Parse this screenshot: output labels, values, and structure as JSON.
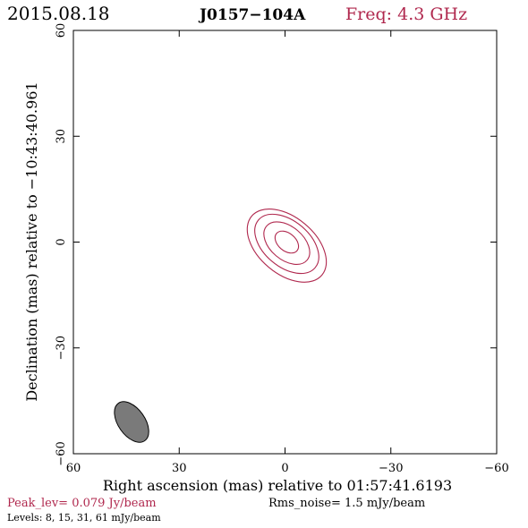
{
  "header": {
    "date": "2015.08.18",
    "source": "J0157−104A",
    "freq": "Freq: 4.3 GHz"
  },
  "footer": {
    "peak": "Peak_lev=  0.079 Jy/beam",
    "rms": "Rms_noise=  1.5 mJy/beam",
    "levels": "Levels:  8,  15,  31,  61 mJy/beam"
  },
  "colors": {
    "contour": "#b0284e",
    "beam_fill": "#7a7a7a",
    "frame": "#000000"
  },
  "chart_data": {
    "type": "contour",
    "xlabel": "Right ascension (mas) relative to 01:57:41.6193",
    "ylabel": "Declination (mas) relative to −10:43:40.961",
    "xlim": [
      60,
      -60
    ],
    "ylim": [
      -60,
      60
    ],
    "x_ticks": [
      {
        "value": 60,
        "label": "60"
      },
      {
        "value": 30,
        "label": "30"
      },
      {
        "value": 0,
        "label": "0"
      },
      {
        "value": -30,
        "label": "−30"
      },
      {
        "value": -60,
        "label": "−60"
      }
    ],
    "y_ticks": [
      {
        "value": -60,
        "label": "−60"
      },
      {
        "value": -30,
        "label": "−30"
      },
      {
        "value": 0,
        "label": "0"
      },
      {
        "value": 30,
        "label": "30"
      },
      {
        "value": 60,
        "label": "60"
      }
    ],
    "levels_mJy_per_beam": [
      8,
      15,
      31,
      61
    ],
    "peak_Jy_per_beam": 0.079,
    "rms_mJy_per_beam": 1.5,
    "contours": [
      {
        "level": 8,
        "center": [
          -0.5,
          -1.0
        ],
        "semi_major": 13.0,
        "semi_minor": 8.0,
        "pa_deg": 40
      },
      {
        "level": 15,
        "center": [
          -0.5,
          -0.5
        ],
        "semi_major": 10.5,
        "semi_minor": 6.5,
        "pa_deg": 40
      },
      {
        "level": 31,
        "center": [
          -0.5,
          -0.3
        ],
        "semi_major": 7.5,
        "semi_minor": 4.7,
        "pa_deg": 40
      },
      {
        "level": 61,
        "center": [
          -0.5,
          0.0
        ],
        "semi_major": 3.8,
        "semi_minor": 2.5,
        "pa_deg": 40
      }
    ],
    "beam": {
      "center": [
        43.5,
        -51.0
      ],
      "semi_major": 6.5,
      "semi_minor": 3.8,
      "pa_deg": 35
    }
  }
}
